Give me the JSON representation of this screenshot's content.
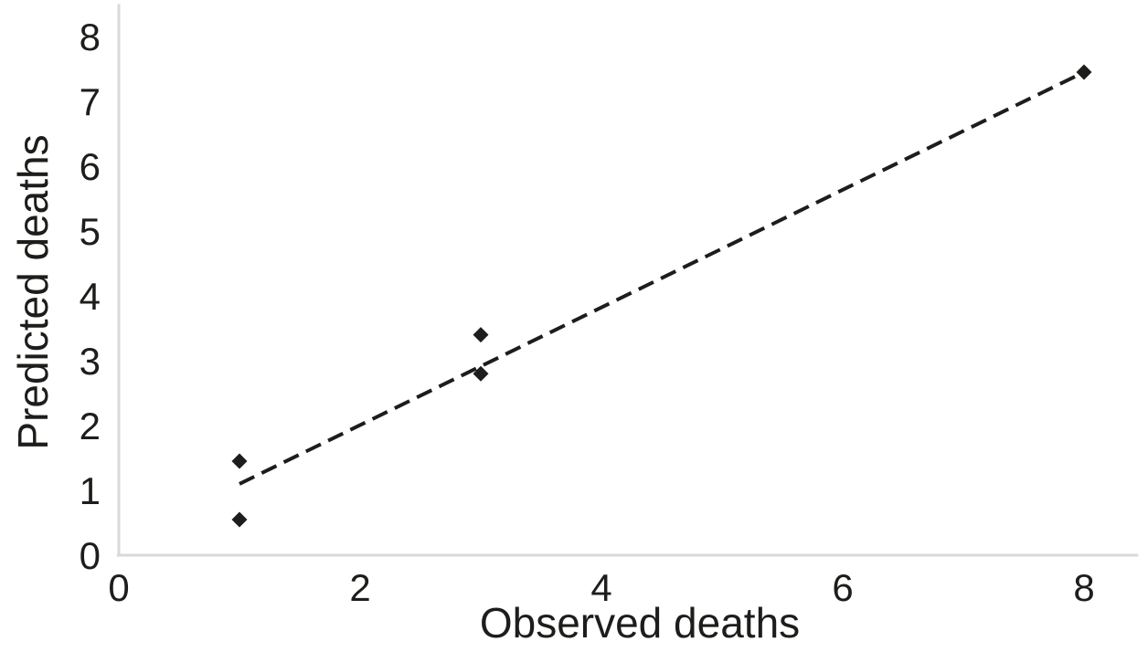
{
  "chart_data": {
    "type": "scatter",
    "xlabel": "Observed deaths",
    "ylabel": "Predicted deaths",
    "x_ticks": [
      0,
      2,
      4,
      6,
      8
    ],
    "y_ticks": [
      0,
      1,
      2,
      3,
      4,
      5,
      6,
      7,
      8
    ],
    "xlim": [
      0,
      8.45
    ],
    "ylim": [
      0,
      8.5
    ],
    "grid": false,
    "legend": false,
    "series": [
      {
        "marker": "diamond",
        "color": "#1d1d1b",
        "points": [
          [
            1,
            0.55
          ],
          [
            1,
            1.45
          ],
          [
            3,
            2.8
          ],
          [
            3,
            3.4
          ],
          [
            8,
            7.45
          ]
        ]
      }
    ],
    "trendline": {
      "style": "dashed",
      "color": "#1d1d1b",
      "from": [
        1,
        1.1
      ],
      "to": [
        8,
        7.45
      ]
    },
    "colors": {
      "background": "#ffffff",
      "axis_line": "#d9d9d9",
      "text": "#1d1d1b"
    }
  }
}
